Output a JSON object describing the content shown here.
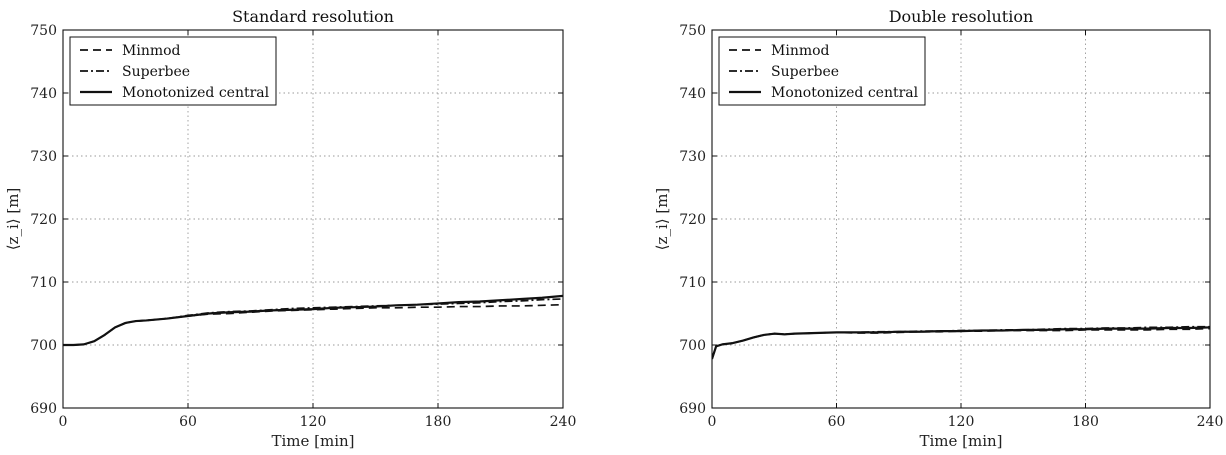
{
  "chart_data": [
    {
      "type": "line",
      "title": "Standard resolution",
      "xlabel": "Time [min]",
      "ylabel": "⟨z_i⟩ [m]",
      "xlim": [
        0,
        240
      ],
      "ylim": [
        690,
        750
      ],
      "xticks": [
        0,
        60,
        120,
        180,
        240
      ],
      "yticks": [
        690,
        700,
        710,
        720,
        730,
        740,
        750
      ],
      "grid": true,
      "legend_position": "top-left",
      "series": [
        {
          "name": "Minmod",
          "style": "dashed",
          "x": [
            0,
            5,
            10,
            15,
            20,
            25,
            30,
            35,
            40,
            50,
            60,
            70,
            80,
            90,
            100,
            110,
            120,
            130,
            140,
            150,
            160,
            170,
            180,
            190,
            200,
            210,
            220,
            230,
            240
          ],
          "y": [
            700.0,
            700.0,
            700.1,
            700.6,
            701.6,
            702.8,
            703.5,
            703.8,
            703.9,
            704.2,
            704.6,
            704.9,
            705.0,
            705.2,
            705.4,
            705.5,
            705.6,
            705.7,
            705.8,
            705.9,
            705.9,
            706.0,
            706.0,
            706.1,
            706.1,
            706.2,
            706.2,
            706.3,
            706.4
          ]
        },
        {
          "name": "Superbee",
          "style": "dashdot",
          "x": [
            0,
            5,
            10,
            15,
            20,
            25,
            30,
            35,
            40,
            50,
            60,
            70,
            80,
            90,
            100,
            110,
            120,
            130,
            140,
            150,
            160,
            170,
            180,
            190,
            200,
            210,
            220,
            230,
            240
          ],
          "y": [
            700.0,
            700.0,
            700.1,
            700.6,
            701.6,
            702.8,
            703.5,
            703.8,
            703.9,
            704.2,
            704.7,
            705.1,
            705.3,
            705.4,
            705.6,
            705.8,
            705.9,
            706.0,
            706.1,
            706.2,
            706.3,
            706.4,
            706.5,
            706.6,
            706.7,
            706.9,
            707.0,
            707.2,
            707.3
          ]
        },
        {
          "name": "Monotonized central",
          "style": "solid",
          "x": [
            0,
            5,
            10,
            15,
            20,
            25,
            30,
            35,
            40,
            50,
            60,
            70,
            80,
            90,
            100,
            110,
            120,
            130,
            140,
            150,
            160,
            170,
            180,
            190,
            200,
            210,
            220,
            230,
            240
          ],
          "y": [
            700.0,
            700.0,
            700.1,
            700.6,
            701.6,
            702.8,
            703.5,
            703.8,
            703.9,
            704.2,
            704.6,
            705.0,
            705.2,
            705.3,
            705.5,
            705.6,
            705.7,
            705.9,
            706.0,
            706.1,
            706.3,
            706.4,
            706.6,
            706.8,
            706.9,
            707.1,
            707.3,
            707.5,
            707.8
          ]
        }
      ]
    },
    {
      "type": "line",
      "title": "Double resolution",
      "xlabel": "Time [min]",
      "ylabel": "⟨z_i⟩ [m]",
      "xlim": [
        0,
        240
      ],
      "ylim": [
        690,
        750
      ],
      "xticks": [
        0,
        60,
        120,
        180,
        240
      ],
      "yticks": [
        690,
        700,
        710,
        720,
        730,
        740,
        750
      ],
      "grid": true,
      "legend_position": "top-left",
      "series": [
        {
          "name": "Minmod",
          "style": "dashed",
          "x": [
            0,
            2,
            5,
            10,
            15,
            20,
            25,
            30,
            35,
            40,
            50,
            60,
            70,
            80,
            90,
            100,
            110,
            120,
            130,
            140,
            150,
            160,
            170,
            180,
            190,
            200,
            210,
            220,
            230,
            240
          ],
          "y": [
            697.8,
            699.8,
            700.1,
            700.3,
            700.7,
            701.2,
            701.6,
            701.8,
            701.7,
            701.8,
            701.9,
            702.0,
            701.9,
            701.9,
            702.0,
            702.1,
            702.1,
            702.2,
            702.2,
            702.3,
            702.3,
            702.3,
            702.3,
            702.4,
            702.4,
            702.4,
            702.4,
            702.5,
            702.5,
            702.6
          ]
        },
        {
          "name": "Superbee",
          "style": "dashdot",
          "x": [
            0,
            2,
            5,
            10,
            15,
            20,
            25,
            30,
            35,
            40,
            50,
            60,
            70,
            80,
            90,
            100,
            110,
            120,
            130,
            140,
            150,
            160,
            170,
            180,
            190,
            200,
            210,
            220,
            230,
            240
          ],
          "y": [
            697.8,
            699.8,
            700.1,
            700.3,
            700.7,
            701.2,
            701.6,
            701.8,
            701.7,
            701.8,
            701.9,
            702.0,
            702.0,
            702.1,
            702.1,
            702.2,
            702.2,
            702.3,
            702.3,
            702.4,
            702.4,
            702.5,
            702.6,
            702.6,
            702.7,
            702.7,
            702.8,
            702.8,
            702.9,
            702.9
          ]
        },
        {
          "name": "Monotonized central",
          "style": "solid",
          "x": [
            0,
            2,
            5,
            10,
            15,
            20,
            25,
            30,
            35,
            40,
            50,
            60,
            70,
            80,
            90,
            100,
            110,
            120,
            130,
            140,
            150,
            160,
            170,
            180,
            190,
            200,
            210,
            220,
            230,
            240
          ],
          "y": [
            697.8,
            699.8,
            700.1,
            700.3,
            700.7,
            701.2,
            701.6,
            701.8,
            701.7,
            701.8,
            701.9,
            702.0,
            702.0,
            702.0,
            702.1,
            702.1,
            702.2,
            702.2,
            702.3,
            702.3,
            702.4,
            702.4,
            702.5,
            702.5,
            702.6,
            702.6,
            702.6,
            702.7,
            702.7,
            702.8
          ]
        }
      ]
    }
  ]
}
